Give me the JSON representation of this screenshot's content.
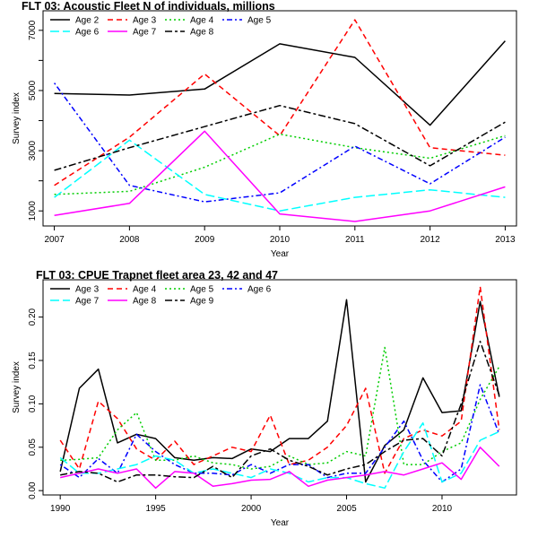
{
  "chart_data": [
    {
      "type": "line",
      "title": "FLT 03: Acoustic Fleet   N of individuals, millions",
      "xlabel": "Year",
      "ylabel": "Survey index",
      "x": [
        2007,
        2008,
        2009,
        2010,
        2011,
        2012,
        2013
      ],
      "xlim": [
        2006.85,
        2013.15
      ],
      "ylim": [
        500,
        7650
      ],
      "xticks": [
        2007,
        2008,
        2009,
        2010,
        2011,
        2012,
        2013
      ],
      "yticks": [
        1000,
        2000,
        3000,
        4000,
        5000,
        6000,
        7000
      ],
      "ytick_labels": [
        "1000",
        "",
        "3000",
        "",
        "5000",
        "",
        "7000"
      ],
      "legend_position": "top-left",
      "legend_columns": 4,
      "series": [
        {
          "name": "Age 2",
          "color": "#000000",
          "dash": "solid",
          "values": [
            4900,
            4850,
            5050,
            6550,
            6100,
            3850,
            6650
          ]
        },
        {
          "name": "Age 3",
          "color": "#ff0000",
          "dash": "dash",
          "values": [
            1850,
            3450,
            5550,
            3500,
            7350,
            3100,
            2850
          ]
        },
        {
          "name": "Age 4",
          "color": "#00cd00",
          "dash": "dot",
          "values": [
            1550,
            1650,
            2450,
            3550,
            3100,
            2750,
            3500
          ]
        },
        {
          "name": "Age 5",
          "color": "#0000ff",
          "dash": "dashdot",
          "values": [
            5250,
            1850,
            1300,
            1600,
            3150,
            1900,
            3450
          ]
        },
        {
          "name": "Age 6",
          "color": "#00ffff",
          "dash": "longdash",
          "values": [
            1450,
            3350,
            1550,
            1000,
            1450,
            1700,
            1450
          ]
        },
        {
          "name": "Age 7",
          "color": "#ff00ff",
          "dash": "solid",
          "values": [
            850,
            1250,
            3650,
            900,
            650,
            1000,
            1800
          ]
        },
        {
          "name": "Age 8",
          "color": "#000000",
          "dash": "twodash",
          "values": [
            2350,
            3100,
            3800,
            4500,
            3900,
            2500,
            3950
          ]
        }
      ]
    },
    {
      "type": "line",
      "title": "FLT 03: CPUE Trapnet fleet area 23, 42 and 47",
      "xlabel": "Year",
      "ylabel": "Survey index",
      "x": [
        1990,
        1991,
        1992,
        1993,
        1994,
        1995,
        1996,
        1997,
        1998,
        1999,
        2000,
        2001,
        2002,
        2003,
        2004,
        2005,
        2006,
        2007,
        2008,
        2009,
        2010,
        2011,
        2012,
        2013
      ],
      "xlim": [
        1989.1,
        2013.9
      ],
      "ylim": [
        -0.005,
        0.243
      ],
      "xticks": [
        1990,
        1995,
        2000,
        2005,
        2010
      ],
      "yticks": [
        0.0,
        0.05,
        0.1,
        0.15,
        0.2
      ],
      "ytick_labels": [
        "0.00",
        "0.05",
        "0.10",
        "0.15",
        "0.20"
      ],
      "legend_position": "top-left",
      "legend_columns": 4,
      "series": [
        {
          "name": "Age 3",
          "color": "#000000",
          "dash": "solid",
          "values": [
            0.022,
            0.118,
            0.14,
            0.055,
            0.065,
            0.06,
            0.038,
            0.035,
            0.038,
            0.037,
            0.048,
            0.045,
            0.06,
            0.06,
            0.08,
            0.22,
            0.01,
            0.052,
            0.07,
            0.13,
            0.09,
            0.092,
            0.218,
            0.108
          ]
        },
        {
          "name": "Age 4",
          "color": "#ff0000",
          "dash": "dash",
          "values": [
            0.058,
            0.025,
            0.103,
            0.083,
            0.048,
            0.035,
            0.057,
            0.03,
            0.04,
            0.05,
            0.045,
            0.087,
            0.03,
            0.035,
            0.05,
            0.075,
            0.118,
            0.02,
            0.06,
            0.07,
            0.063,
            0.08,
            0.235,
            0.07
          ]
        },
        {
          "name": "Age 5",
          "color": "#00cd00",
          "dash": "dot",
          "values": [
            0.035,
            0.036,
            0.038,
            0.07,
            0.09,
            0.035,
            0.035,
            0.04,
            0.032,
            0.03,
            0.025,
            0.028,
            0.04,
            0.03,
            0.032,
            0.045,
            0.04,
            0.165,
            0.03,
            0.03,
            0.045,
            0.055,
            0.105,
            0.143
          ]
        },
        {
          "name": "Age 6",
          "color": "#0000ff",
          "dash": "dashdot",
          "values": [
            0.03,
            0.015,
            0.037,
            0.02,
            0.065,
            0.045,
            0.03,
            0.02,
            0.02,
            0.018,
            0.03,
            0.02,
            0.03,
            0.03,
            0.015,
            0.02,
            0.02,
            0.05,
            0.08,
            0.035,
            0.01,
            0.025,
            0.122,
            0.065
          ]
        },
        {
          "name": "Age 7",
          "color": "#00ffff",
          "dash": "longdash",
          "values": [
            0.038,
            0.02,
            0.02,
            0.025,
            0.03,
            0.04,
            0.035,
            0.02,
            0.025,
            0.02,
            0.015,
            0.025,
            0.02,
            0.01,
            0.015,
            0.015,
            0.008,
            0.003,
            0.045,
            0.078,
            0.01,
            0.02,
            0.058,
            0.068
          ]
        },
        {
          "name": "Age 8",
          "color": "#ff00ff",
          "dash": "solid",
          "values": [
            0.015,
            0.02,
            0.025,
            0.02,
            0.025,
            0.003,
            0.022,
            0.02,
            0.005,
            0.008,
            0.012,
            0.013,
            0.022,
            0.005,
            0.012,
            0.015,
            0.018,
            0.022,
            0.018,
            0.025,
            0.032,
            0.013,
            0.05,
            0.028
          ]
        },
        {
          "name": "Age 9",
          "color": "#000000",
          "dash": "twodash",
          "values": [
            0.018,
            0.022,
            0.02,
            0.01,
            0.018,
            0.018,
            0.016,
            0.015,
            0.028,
            0.015,
            0.04,
            0.048,
            0.035,
            0.028,
            0.018,
            0.025,
            0.03,
            0.045,
            0.058,
            0.06,
            0.04,
            0.1,
            0.172,
            0.11
          ]
        }
      ]
    }
  ]
}
